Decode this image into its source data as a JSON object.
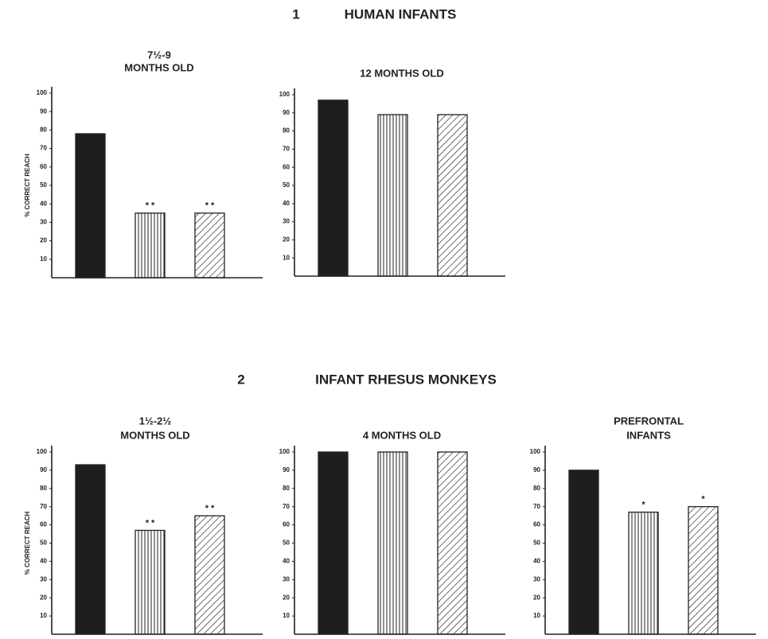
{
  "sections": [
    {
      "number": "1",
      "title": "HUMAN INFANTS"
    },
    {
      "number": "2",
      "title": "INFANT RHESUS MONKEYS"
    }
  ],
  "chart_data": [
    {
      "type": "bar",
      "title": [
        "7½-9",
        "MONTHS OLD"
      ],
      "y_label": "% CORRECT REACH",
      "categories": [
        null,
        null,
        null
      ],
      "values": [
        78,
        35,
        35
      ],
      "fills": [
        "solid",
        "vertical-hatch",
        "diagonal-hatch"
      ],
      "annotations": [
        null,
        "* *",
        "* *"
      ],
      "ylim": [
        0,
        100
      ],
      "yticks": [
        10,
        20,
        30,
        40,
        50,
        60,
        70,
        80,
        90,
        100
      ]
    },
    {
      "type": "bar",
      "title": [
        "12 MONTHS OLD"
      ],
      "categories": [
        null,
        null,
        null
      ],
      "values": [
        97,
        89,
        89
      ],
      "fills": [
        "solid",
        "vertical-hatch",
        "diagonal-hatch"
      ],
      "ylim": [
        0,
        100
      ],
      "yticks": [
        10,
        20,
        30,
        40,
        50,
        60,
        70,
        80,
        90,
        100
      ]
    },
    {
      "type": "bar",
      "title": [
        "1½-2½",
        "MONTHS OLD"
      ],
      "y_label": "% CORRECT REACH",
      "categories": [
        null,
        null,
        null
      ],
      "values": [
        93,
        57,
        65
      ],
      "fills": [
        "solid",
        "vertical-hatch",
        "diagonal-hatch"
      ],
      "annotations": [
        null,
        "* *",
        "* *"
      ],
      "ylim": [
        0,
        100
      ],
      "yticks": [
        10,
        20,
        30,
        40,
        50,
        60,
        70,
        80,
        90,
        100
      ]
    },
    {
      "type": "bar",
      "title": [
        "4 MONTHS OLD"
      ],
      "categories": [
        null,
        null,
        null
      ],
      "values": [
        100,
        100,
        100
      ],
      "fills": [
        "solid",
        "vertical-hatch",
        "diagonal-hatch"
      ],
      "ylim": [
        0,
        100
      ],
      "yticks": [
        10,
        20,
        30,
        40,
        50,
        60,
        70,
        80,
        90,
        100
      ]
    },
    {
      "type": "bar",
      "title": [
        "PREFRONTAL",
        "INFANTS"
      ],
      "categories": [
        null,
        null,
        null
      ],
      "values": [
        90,
        67,
        70
      ],
      "fills": [
        "solid",
        "vertical-hatch",
        "diagonal-hatch"
      ],
      "annotations": [
        null,
        "*",
        "*"
      ],
      "ylim": [
        0,
        100
      ],
      "yticks": [
        10,
        20,
        30,
        40,
        50,
        60,
        70,
        80,
        90,
        100
      ]
    }
  ]
}
